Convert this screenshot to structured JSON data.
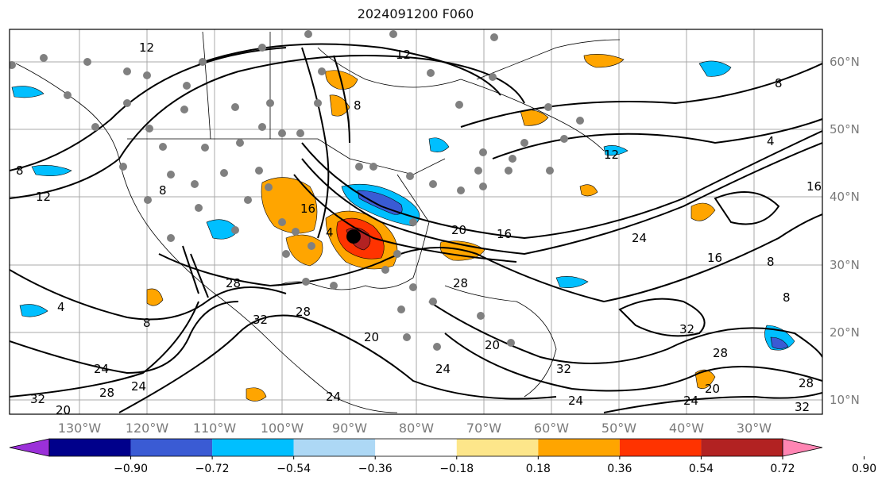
{
  "title": "2024091200 F060",
  "map": {
    "lat_labels": [
      "60°N",
      "50°N",
      "40°N",
      "30°N",
      "20°N",
      "10°N"
    ],
    "lon_labels": [
      "130°W",
      "120°W",
      "110°W",
      "100°W",
      "90°W",
      "80°W",
      "70°W",
      "60°W",
      "50°W",
      "40°W",
      "30°W"
    ],
    "contour_labels": [
      "12",
      "12",
      "8",
      "8",
      "8",
      "12",
      "4",
      "16",
      "20",
      "16",
      "24",
      "28",
      "32",
      "8",
      "4",
      "28",
      "24",
      "32",
      "20",
      "24",
      "28",
      "32",
      "20",
      "24",
      "28",
      "32",
      "28",
      "24",
      "20",
      "12",
      "8",
      "4",
      "8",
      "8",
      "32",
      "16",
      "24",
      "28",
      "16",
      "20",
      "24"
    ],
    "storm_center_color": "#000000",
    "station_marker_color": "#808080"
  },
  "colorbar": {
    "ticks": [
      "−0.90",
      "−0.72",
      "−0.54",
      "−0.36",
      "−0.18",
      "0.18",
      "0.36",
      "0.54",
      "0.72",
      "0.90"
    ],
    "colors": [
      "#9b30d9",
      "#00008b",
      "#3a5bd4",
      "#00bfff",
      "#add8f5",
      "#ffffff",
      "#fde68a",
      "#ffa500",
      "#ff3300",
      "#b22222",
      "#ff85b3"
    ]
  }
}
